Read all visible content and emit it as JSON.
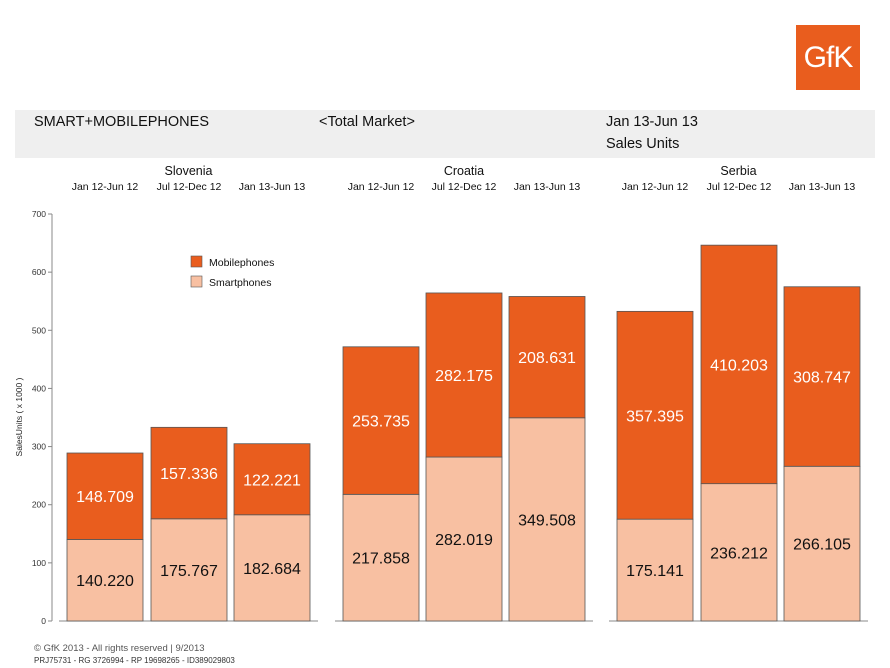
{
  "logo": {
    "text": "GfK",
    "color": "#e95d1e"
  },
  "header": {
    "title": "SMART+MOBILEPHONES",
    "market": "<Total Market>",
    "period": "Jan 13-Jun 13",
    "unit": "Sales Units"
  },
  "footer": {
    "copyright": "© GfK 2013 - All rights reserved | 9/2013",
    "ids": "PRJ75731 - RG 3726994 - RP 19698265 - ID389029803"
  },
  "colors": {
    "mobile": "#e95d1e",
    "smart": "#f8c0a2",
    "axis": "#888888"
  },
  "chart_data": {
    "type": "bar",
    "stacked": true,
    "groups": [
      "Slovenia",
      "Croatia",
      "Serbia"
    ],
    "periods": [
      "Jan 12-Jun 12",
      "Jul 12-Dec 12",
      "Jan 13-Jun 13"
    ],
    "categories": [
      "Slovenia Jan 12-Jun 12",
      "Slovenia Jul 12-Dec 12",
      "Slovenia Jan 13-Jun 13",
      "Croatia Jan 12-Jun 12",
      "Croatia Jul 12-Dec 12",
      "Croatia Jan 13-Jun 13",
      "Serbia Jan 12-Jun 12",
      "Serbia Jul 12-Dec 12",
      "Serbia Jan 13-Jun 13"
    ],
    "series": [
      {
        "name": "Smartphones",
        "values": [
          140.22,
          175.767,
          182.684,
          217.858,
          282.019,
          349.508,
          175.141,
          236.212,
          266.105
        ],
        "labels": [
          "140.220",
          "175.767",
          "182.684",
          "217.858",
          "282.019",
          "349.508",
          "175.141",
          "236.212",
          "266.105"
        ]
      },
      {
        "name": "Mobilephones",
        "values": [
          148.709,
          157.336,
          122.221,
          253.735,
          282.175,
          208.631,
          357.395,
          410.203,
          308.747
        ],
        "labels": [
          "148.709",
          "157.336",
          "122.221",
          "253.735",
          "282.175",
          "208.631",
          "357.395",
          "410.203",
          "308.747"
        ]
      }
    ],
    "legend": [
      "Mobilephones",
      "Smartphones"
    ],
    "legend_position": "top-left",
    "ylabel": "SalesUnits ( x 1000 )",
    "yticks": [
      "0",
      "100",
      "200",
      "300",
      "400",
      "500",
      "600",
      "700"
    ],
    "ylim": [
      0,
      700
    ],
    "grid": false
  }
}
